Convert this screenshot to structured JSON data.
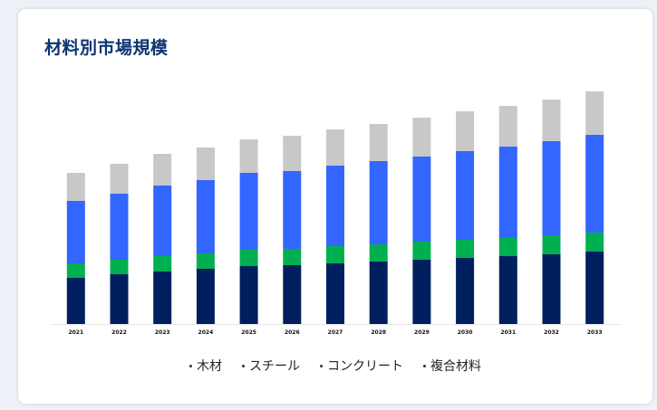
{
  "title": "材料別市場規模",
  "chart_data": {
    "type": "bar",
    "stacked": true,
    "categories": [
      "2021",
      "2022",
      "2023",
      "2024",
      "2025",
      "2026",
      "2027",
      "2028",
      "2029",
      "2030",
      "2031",
      "2032",
      "2033"
    ],
    "series": [
      {
        "name": "木材",
        "color": "#001f5f",
        "values": [
          51,
          55,
          58,
          61,
          64,
          65,
          67,
          69,
          71,
          73,
          75,
          77,
          80
        ]
      },
      {
        "name": "スチール",
        "color": "#00b050",
        "values": [
          16,
          16,
          17,
          17,
          18,
          18,
          19,
          19,
          20,
          20,
          20,
          21,
          21
        ]
      },
      {
        "name": "コンクリート",
        "color": "#3366ff",
        "values": [
          69,
          73,
          78,
          81,
          85,
          86,
          89,
          92,
          94,
          98,
          101,
          104,
          108
        ]
      },
      {
        "name": "複合材料",
        "color": "#c8c8c8",
        "values": [
          31,
          33,
          35,
          36,
          37,
          39,
          40,
          41,
          43,
          44,
          45,
          46,
          48
        ]
      }
    ],
    "ylim": [
      0,
      260
    ],
    "grid": false,
    "legend": "bottom-center"
  }
}
